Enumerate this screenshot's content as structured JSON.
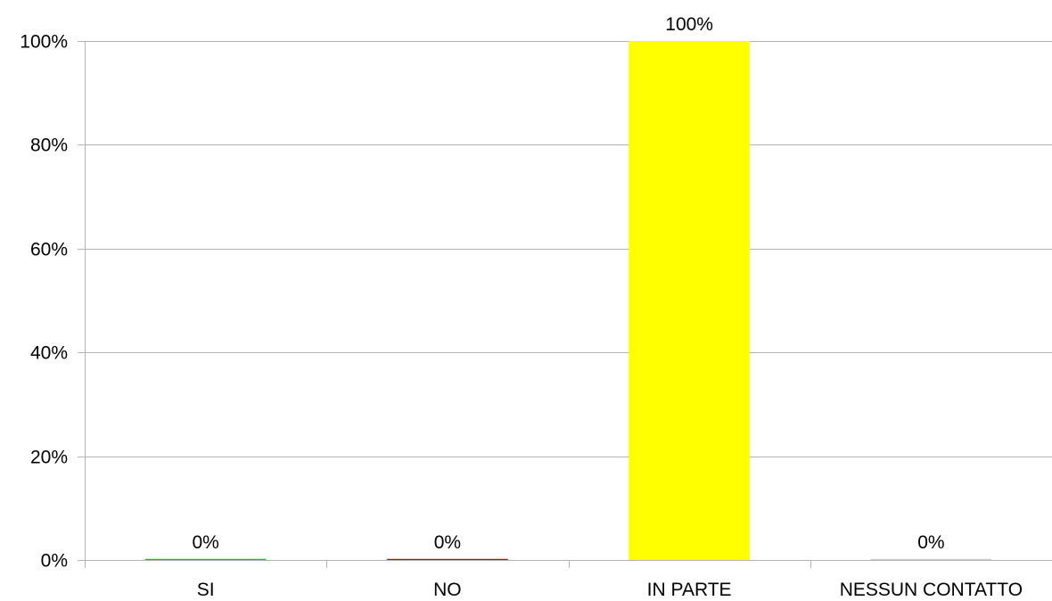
{
  "chart_data": {
    "type": "bar",
    "title": "",
    "xlabel": "",
    "ylabel": "",
    "categories": [
      "SI",
      "NO",
      "IN PARTE",
      "NESSUN CONTATTO"
    ],
    "values": [
      0,
      0,
      100,
      0
    ],
    "value_labels": [
      "0%",
      "0%",
      "100%",
      "0%"
    ],
    "colors": [
      "#00cc00",
      "#cc0000",
      "#ffff00",
      "#cccccc"
    ],
    "ylim": [
      0,
      100
    ],
    "yticks": [
      0,
      20,
      40,
      60,
      80,
      100
    ],
    "ytick_labels": [
      "0%",
      "20%",
      "40%",
      "60%",
      "80%",
      "100%"
    ],
    "grid": true,
    "legend": "none"
  }
}
